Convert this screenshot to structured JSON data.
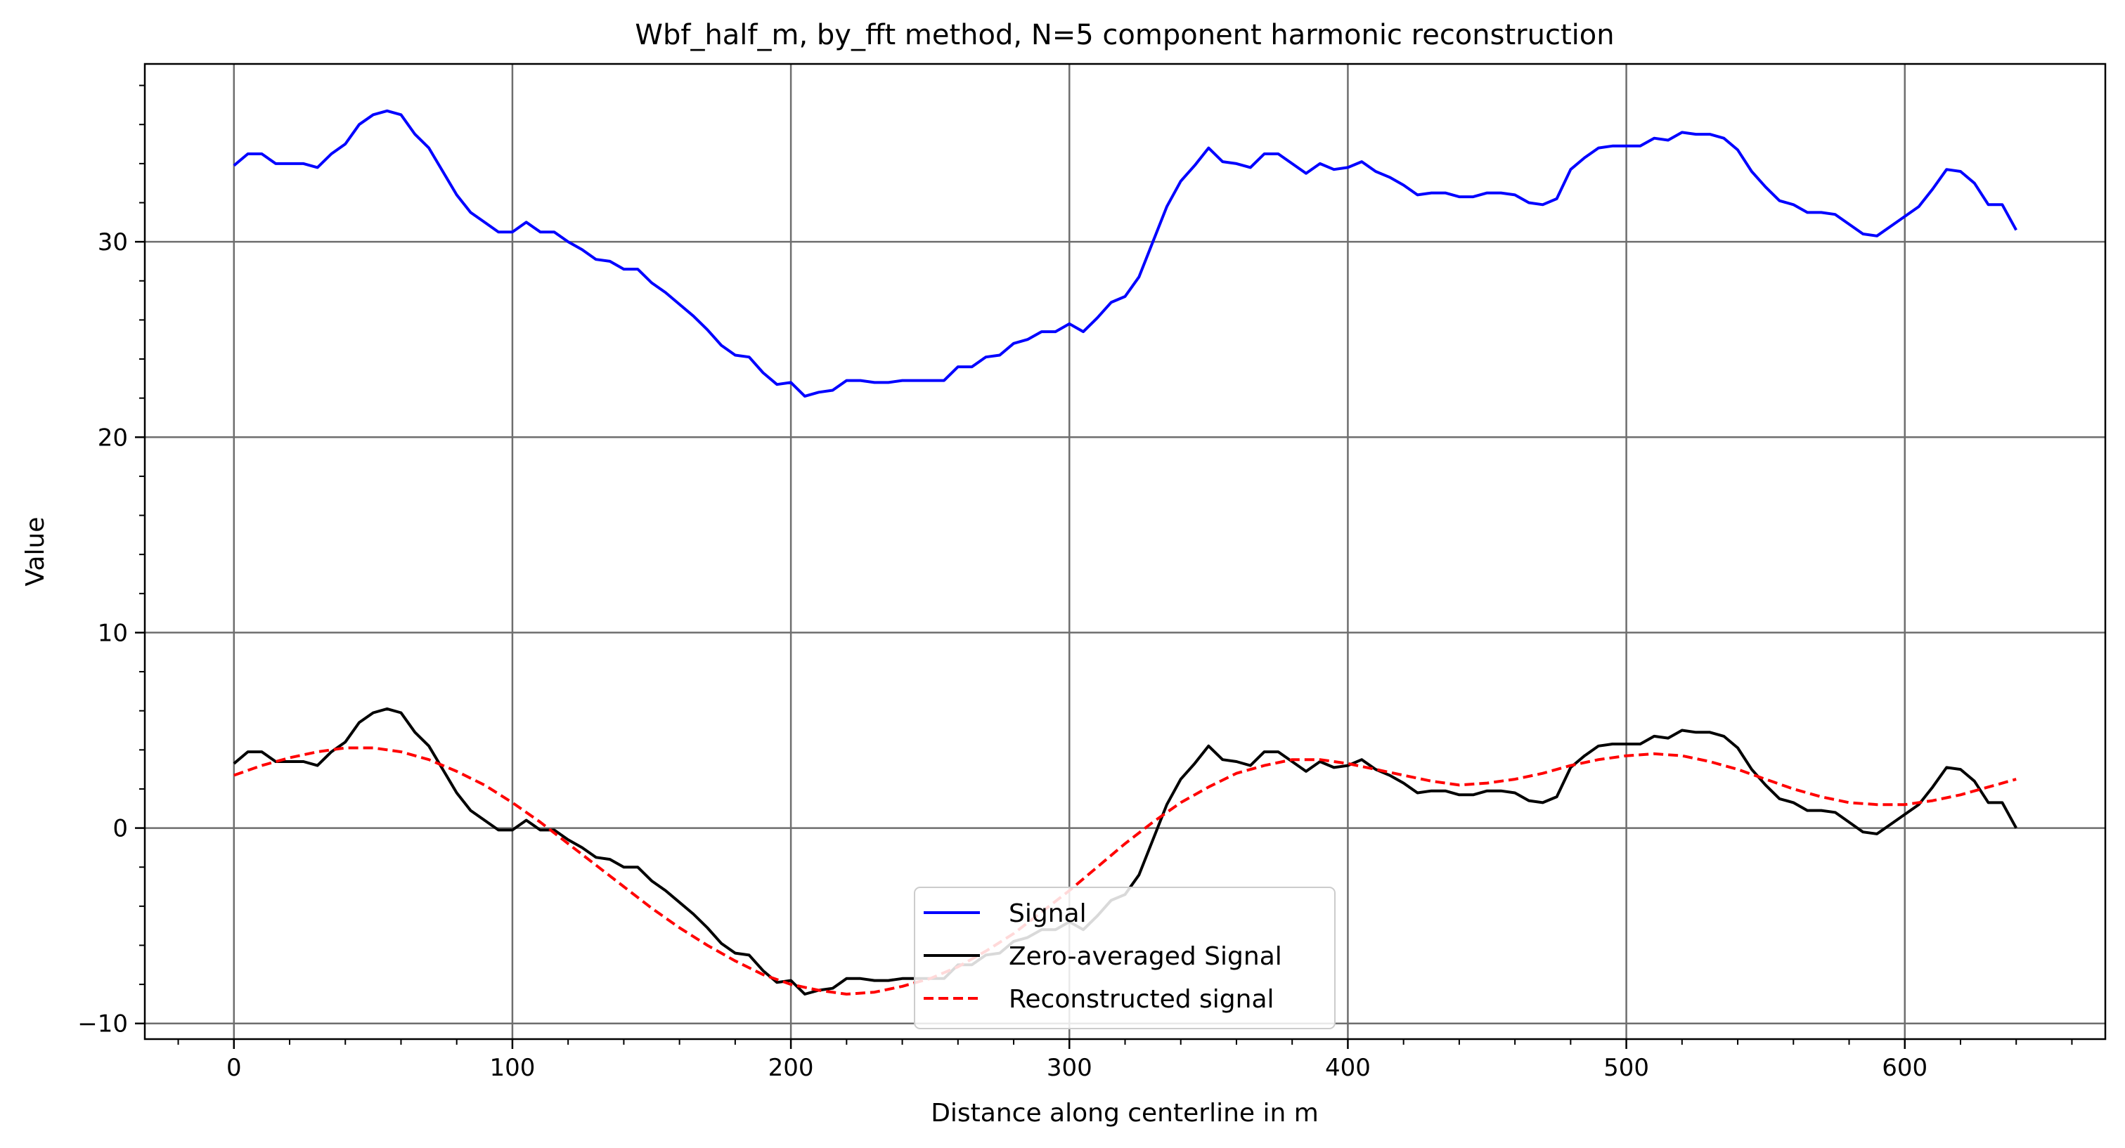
{
  "chart_data": {
    "type": "line",
    "title": "Wbf_half_m, by_fft method, N=5 component harmonic reconstruction",
    "xlabel": "Distance along centerline in m",
    "ylabel": "Value",
    "xlim": [
      -32,
      672
    ],
    "ylim": [
      -10.8,
      39.1
    ],
    "grid": true,
    "legend_position": "lower center",
    "x_ticks": [
      0,
      100,
      200,
      300,
      400,
      500,
      600
    ],
    "y_ticks": [
      -10,
      0,
      10,
      20,
      30
    ],
    "series": [
      {
        "name": "Signal",
        "color": "#0000ff",
        "style": "solid",
        "points": [
          [
            0,
            33.9
          ],
          [
            5,
            34.5
          ],
          [
            10,
            34.5
          ],
          [
            15,
            34.0
          ],
          [
            20,
            34.0
          ],
          [
            25,
            34.0
          ],
          [
            30,
            33.8
          ],
          [
            35,
            34.5
          ],
          [
            40,
            35.0
          ],
          [
            45,
            36.0
          ],
          [
            50,
            36.5
          ],
          [
            55,
            36.7
          ],
          [
            60,
            36.5
          ],
          [
            65,
            35.5
          ],
          [
            70,
            34.8
          ],
          [
            75,
            33.6
          ],
          [
            80,
            32.4
          ],
          [
            85,
            31.5
          ],
          [
            90,
            31.0
          ],
          [
            95,
            30.5
          ],
          [
            100,
            30.5
          ],
          [
            105,
            31.0
          ],
          [
            110,
            30.5
          ],
          [
            115,
            30.5
          ],
          [
            120,
            30.0
          ],
          [
            125,
            29.6
          ],
          [
            130,
            29.1
          ],
          [
            135,
            29.0
          ],
          [
            140,
            28.6
          ],
          [
            145,
            28.6
          ],
          [
            150,
            27.9
          ],
          [
            155,
            27.4
          ],
          [
            160,
            26.8
          ],
          [
            165,
            26.2
          ],
          [
            170,
            25.5
          ],
          [
            175,
            24.7
          ],
          [
            180,
            24.2
          ],
          [
            185,
            24.1
          ],
          [
            190,
            23.3
          ],
          [
            195,
            22.7
          ],
          [
            200,
            22.8
          ],
          [
            205,
            22.1
          ],
          [
            210,
            22.3
          ],
          [
            215,
            22.4
          ],
          [
            220,
            22.9
          ],
          [
            225,
            22.9
          ],
          [
            230,
            22.8
          ],
          [
            235,
            22.8
          ],
          [
            240,
            22.9
          ],
          [
            245,
            22.9
          ],
          [
            250,
            22.9
          ],
          [
            255,
            22.9
          ],
          [
            260,
            23.6
          ],
          [
            265,
            23.6
          ],
          [
            270,
            24.1
          ],
          [
            275,
            24.2
          ],
          [
            280,
            24.8
          ],
          [
            285,
            25.0
          ],
          [
            290,
            25.4
          ],
          [
            295,
            25.4
          ],
          [
            300,
            25.8
          ],
          [
            305,
            25.4
          ],
          [
            310,
            26.1
          ],
          [
            315,
            26.9
          ],
          [
            320,
            27.2
          ],
          [
            325,
            28.2
          ],
          [
            330,
            30.0
          ],
          [
            335,
            31.8
          ],
          [
            340,
            33.1
          ],
          [
            345,
            33.9
          ],
          [
            350,
            34.8
          ],
          [
            355,
            34.1
          ],
          [
            360,
            34.0
          ],
          [
            365,
            33.8
          ],
          [
            370,
            34.5
          ],
          [
            375,
            34.5
          ],
          [
            380,
            34.0
          ],
          [
            385,
            33.5
          ],
          [
            390,
            34.0
          ],
          [
            395,
            33.7
          ],
          [
            400,
            33.8
          ],
          [
            405,
            34.1
          ],
          [
            410,
            33.6
          ],
          [
            415,
            33.3
          ],
          [
            420,
            32.9
          ],
          [
            425,
            32.4
          ],
          [
            430,
            32.5
          ],
          [
            435,
            32.5
          ],
          [
            440,
            32.3
          ],
          [
            445,
            32.3
          ],
          [
            450,
            32.5
          ],
          [
            455,
            32.5
          ],
          [
            460,
            32.4
          ],
          [
            465,
            32.0
          ],
          [
            470,
            31.9
          ],
          [
            475,
            32.2
          ],
          [
            480,
            33.7
          ],
          [
            485,
            34.3
          ],
          [
            490,
            34.8
          ],
          [
            495,
            34.9
          ],
          [
            500,
            34.9
          ],
          [
            505,
            34.9
          ],
          [
            510,
            35.3
          ],
          [
            515,
            35.2
          ],
          [
            520,
            35.6
          ],
          [
            525,
            35.5
          ],
          [
            530,
            35.5
          ],
          [
            535,
            35.3
          ],
          [
            540,
            34.7
          ],
          [
            545,
            33.6
          ],
          [
            550,
            32.8
          ],
          [
            555,
            32.1
          ],
          [
            560,
            31.9
          ],
          [
            565,
            31.5
          ],
          [
            570,
            31.5
          ],
          [
            575,
            31.4
          ],
          [
            580,
            30.9
          ],
          [
            585,
            30.4
          ],
          [
            590,
            30.3
          ],
          [
            595,
            30.8
          ],
          [
            600,
            31.3
          ],
          [
            605,
            31.8
          ],
          [
            610,
            32.7
          ],
          [
            615,
            33.7
          ],
          [
            620,
            33.6
          ],
          [
            625,
            33.0
          ],
          [
            630,
            31.9
          ],
          [
            635,
            31.9
          ],
          [
            640,
            30.6
          ]
        ]
      },
      {
        "name": "Zero-averaged Signal",
        "color": "#000000",
        "style": "solid",
        "points": [
          [
            0,
            3.3
          ],
          [
            5,
            3.9
          ],
          [
            10,
            3.9
          ],
          [
            15,
            3.4
          ],
          [
            20,
            3.4
          ],
          [
            25,
            3.4
          ],
          [
            30,
            3.2
          ],
          [
            35,
            3.9
          ],
          [
            40,
            4.4
          ],
          [
            45,
            5.4
          ],
          [
            50,
            5.9
          ],
          [
            55,
            6.1
          ],
          [
            60,
            5.9
          ],
          [
            65,
            4.9
          ],
          [
            70,
            4.2
          ],
          [
            75,
            3.0
          ],
          [
            80,
            1.8
          ],
          [
            85,
            0.9
          ],
          [
            90,
            0.4
          ],
          [
            95,
            -0.1
          ],
          [
            100,
            -0.1
          ],
          [
            105,
            0.4
          ],
          [
            110,
            -0.1
          ],
          [
            115,
            -0.1
          ],
          [
            120,
            -0.6
          ],
          [
            125,
            -1.0
          ],
          [
            130,
            -1.5
          ],
          [
            135,
            -1.6
          ],
          [
            140,
            -2.0
          ],
          [
            145,
            -2.0
          ],
          [
            150,
            -2.7
          ],
          [
            155,
            -3.2
          ],
          [
            160,
            -3.8
          ],
          [
            165,
            -4.4
          ],
          [
            170,
            -5.1
          ],
          [
            175,
            -5.9
          ],
          [
            180,
            -6.4
          ],
          [
            185,
            -6.5
          ],
          [
            190,
            -7.3
          ],
          [
            195,
            -7.9
          ],
          [
            200,
            -7.8
          ],
          [
            205,
            -8.5
          ],
          [
            210,
            -8.3
          ],
          [
            215,
            -8.2
          ],
          [
            220,
            -7.7
          ],
          [
            225,
            -7.7
          ],
          [
            230,
            -7.8
          ],
          [
            235,
            -7.8
          ],
          [
            240,
            -7.7
          ],
          [
            245,
            -7.7
          ],
          [
            250,
            -7.7
          ],
          [
            255,
            -7.7
          ],
          [
            260,
            -7.0
          ],
          [
            265,
            -7.0
          ],
          [
            270,
            -6.5
          ],
          [
            275,
            -6.4
          ],
          [
            280,
            -5.8
          ],
          [
            285,
            -5.6
          ],
          [
            290,
            -5.2
          ],
          [
            295,
            -5.2
          ],
          [
            300,
            -4.8
          ],
          [
            305,
            -5.2
          ],
          [
            310,
            -4.5
          ],
          [
            315,
            -3.7
          ],
          [
            320,
            -3.4
          ],
          [
            325,
            -2.4
          ],
          [
            330,
            -0.6
          ],
          [
            335,
            1.2
          ],
          [
            340,
            2.5
          ],
          [
            345,
            3.3
          ],
          [
            350,
            4.2
          ],
          [
            355,
            3.5
          ],
          [
            360,
            3.4
          ],
          [
            365,
            3.2
          ],
          [
            370,
            3.9
          ],
          [
            375,
            3.9
          ],
          [
            380,
            3.4
          ],
          [
            385,
            2.9
          ],
          [
            390,
            3.4
          ],
          [
            395,
            3.1
          ],
          [
            400,
            3.2
          ],
          [
            405,
            3.5
          ],
          [
            410,
            3.0
          ],
          [
            415,
            2.7
          ],
          [
            420,
            2.3
          ],
          [
            425,
            1.8
          ],
          [
            430,
            1.9
          ],
          [
            435,
            1.9
          ],
          [
            440,
            1.7
          ],
          [
            445,
            1.7
          ],
          [
            450,
            1.9
          ],
          [
            455,
            1.9
          ],
          [
            460,
            1.8
          ],
          [
            465,
            1.4
          ],
          [
            470,
            1.3
          ],
          [
            475,
            1.6
          ],
          [
            480,
            3.1
          ],
          [
            485,
            3.7
          ],
          [
            490,
            4.2
          ],
          [
            495,
            4.3
          ],
          [
            500,
            4.3
          ],
          [
            505,
            4.3
          ],
          [
            510,
            4.7
          ],
          [
            515,
            4.6
          ],
          [
            520,
            5.0
          ],
          [
            525,
            4.9
          ],
          [
            530,
            4.9
          ],
          [
            535,
            4.7
          ],
          [
            540,
            4.1
          ],
          [
            545,
            3.0
          ],
          [
            550,
            2.2
          ],
          [
            555,
            1.5
          ],
          [
            560,
            1.3
          ],
          [
            565,
            0.9
          ],
          [
            570,
            0.9
          ],
          [
            575,
            0.8
          ],
          [
            580,
            0.3
          ],
          [
            585,
            -0.2
          ],
          [
            590,
            -0.3
          ],
          [
            595,
            0.2
          ],
          [
            600,
            0.7
          ],
          [
            605,
            1.2
          ],
          [
            610,
            2.1
          ],
          [
            615,
            3.1
          ],
          [
            620,
            3.0
          ],
          [
            625,
            2.4
          ],
          [
            630,
            1.3
          ],
          [
            635,
            1.3
          ],
          [
            640,
            0.0
          ]
        ]
      },
      {
        "name": "Reconstructed signal",
        "color": "#ff0000",
        "style": "dashed",
        "points": [
          [
            0,
            2.7
          ],
          [
            10,
            3.2
          ],
          [
            20,
            3.6
          ],
          [
            30,
            3.9
          ],
          [
            40,
            4.1
          ],
          [
            50,
            4.1
          ],
          [
            60,
            3.9
          ],
          [
            70,
            3.5
          ],
          [
            80,
            2.9
          ],
          [
            90,
            2.2
          ],
          [
            100,
            1.3
          ],
          [
            110,
            0.3
          ],
          [
            120,
            -0.8
          ],
          [
            130,
            -1.9
          ],
          [
            140,
            -3.0
          ],
          [
            150,
            -4.1
          ],
          [
            160,
            -5.1
          ],
          [
            170,
            -6.0
          ],
          [
            180,
            -6.8
          ],
          [
            190,
            -7.5
          ],
          [
            200,
            -8.0
          ],
          [
            210,
            -8.3
          ],
          [
            220,
            -8.5
          ],
          [
            230,
            -8.4
          ],
          [
            240,
            -8.1
          ],
          [
            250,
            -7.7
          ],
          [
            260,
            -7.1
          ],
          [
            270,
            -6.3
          ],
          [
            280,
            -5.4
          ],
          [
            290,
            -4.3
          ],
          [
            300,
            -3.2
          ],
          [
            310,
            -2.0
          ],
          [
            320,
            -0.8
          ],
          [
            330,
            0.3
          ],
          [
            340,
            1.3
          ],
          [
            350,
            2.1
          ],
          [
            360,
            2.8
          ],
          [
            370,
            3.2
          ],
          [
            380,
            3.5
          ],
          [
            390,
            3.5
          ],
          [
            400,
            3.3
          ],
          [
            410,
            3.0
          ],
          [
            420,
            2.7
          ],
          [
            430,
            2.4
          ],
          [
            440,
            2.2
          ],
          [
            450,
            2.3
          ],
          [
            460,
            2.5
          ],
          [
            470,
            2.8
          ],
          [
            480,
            3.2
          ],
          [
            490,
            3.5
          ],
          [
            500,
            3.7
          ],
          [
            510,
            3.8
          ],
          [
            520,
            3.7
          ],
          [
            530,
            3.4
          ],
          [
            540,
            3.0
          ],
          [
            550,
            2.5
          ],
          [
            560,
            2.0
          ],
          [
            570,
            1.6
          ],
          [
            580,
            1.3
          ],
          [
            590,
            1.2
          ],
          [
            600,
            1.2
          ],
          [
            610,
            1.4
          ],
          [
            620,
            1.7
          ],
          [
            630,
            2.1
          ],
          [
            640,
            2.5
          ]
        ]
      }
    ]
  }
}
